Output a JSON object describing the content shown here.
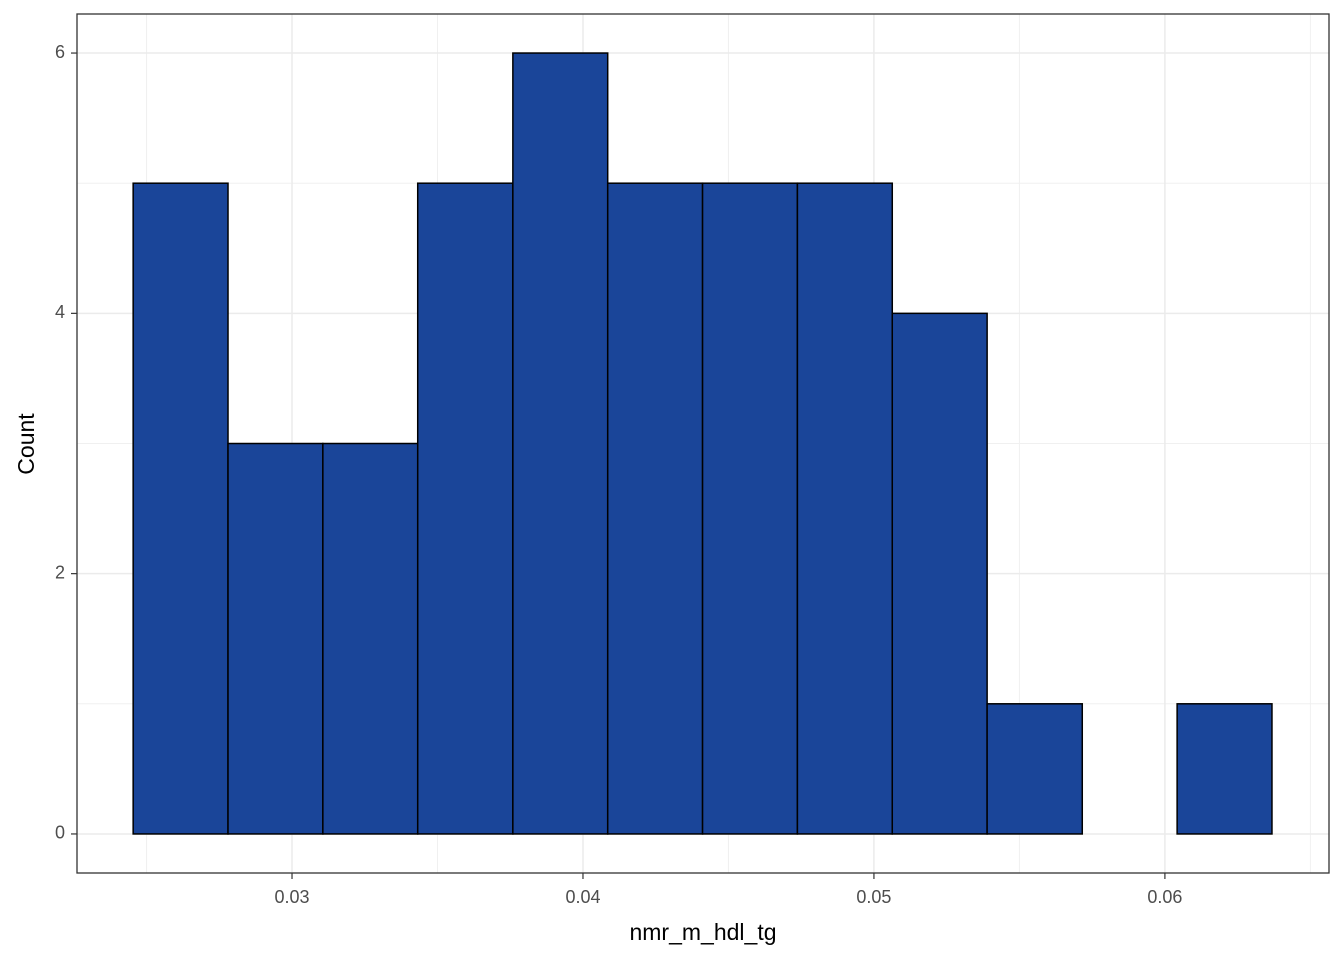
{
  "chart_data": {
    "type": "histogram",
    "x_label": "nmr_m_hdl_tg",
    "y_label": "Count",
    "bins": [
      0.02454,
      0.0278,
      0.03106,
      0.03432,
      0.03759,
      0.04085,
      0.04411,
      0.04737,
      0.05063,
      0.05389,
      0.05716,
      0.06042,
      0.06368
    ],
    "values": [
      5,
      3,
      3,
      5,
      6,
      5,
      5,
      5,
      4,
      1,
      0,
      1
    ],
    "color": "#1a4599",
    "xlim": [
      0.02261,
      0.06564
    ],
    "xticks": [
      0.03,
      0.04,
      0.05,
      0.06
    ],
    "ylim": [
      -0.3,
      6.3
    ],
    "yticks": [
      0,
      2,
      4,
      6
    ],
    "grid": true,
    "minor_grid": true
  }
}
